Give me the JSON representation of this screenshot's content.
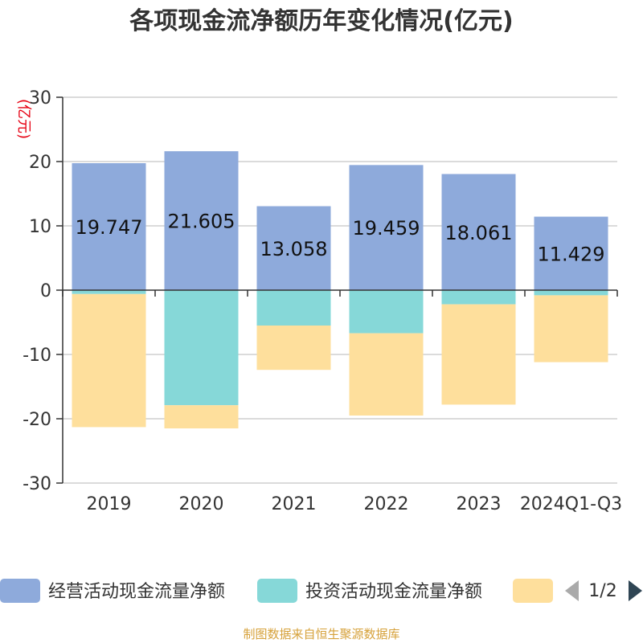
{
  "chart_data": {
    "type": "bar",
    "stacked": true,
    "title": "各项现金流净额历年变化情况(亿元)",
    "ylabel": "(亿元)",
    "categories": [
      "2019",
      "2020",
      "2021",
      "2022",
      "2023",
      "2024Q1-Q3"
    ],
    "ylim": [
      -30,
      30
    ],
    "yticks": [
      30,
      20,
      10,
      0,
      -10,
      -20,
      -30
    ],
    "grid": true,
    "legend_position": "bottom",
    "series": [
      {
        "name": "经营活动现金流量净额",
        "color": "#8eaadb",
        "values": [
          19.747,
          21.605,
          13.058,
          19.459,
          18.061,
          11.429
        ],
        "labels": [
          "19.747",
          "21.605",
          "13.058",
          "19.459",
          "18.061",
          "11.429"
        ]
      },
      {
        "name": "投资活动现金流量净额",
        "color": "#86d8d8",
        "values": [
          -0.6,
          -17.9,
          -5.5,
          -6.7,
          -2.2,
          -0.8
        ]
      },
      {
        "name": "",
        "color": "#fedf9c",
        "values": [
          -20.7,
          -3.6,
          -6.9,
          -12.8,
          -15.6,
          -10.4
        ]
      }
    ]
  },
  "legend_page": "1/2",
  "source_note": "制图数据来自恒生聚源数据库"
}
